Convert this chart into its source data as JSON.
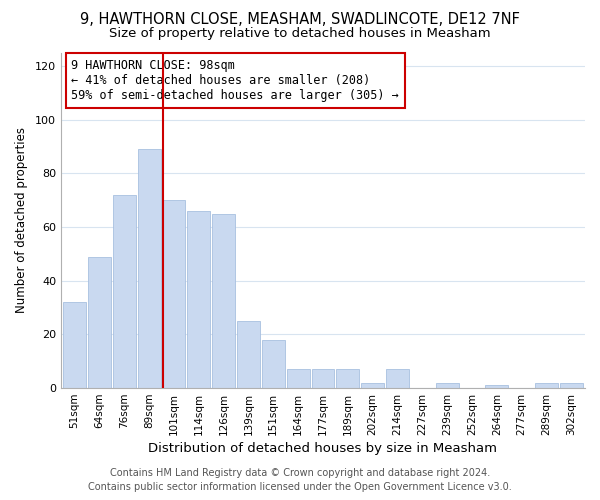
{
  "title": "9, HAWTHORN CLOSE, MEASHAM, SWADLINCOTE, DE12 7NF",
  "subtitle": "Size of property relative to detached houses in Measham",
  "xlabel": "Distribution of detached houses by size in Measham",
  "ylabel": "Number of detached properties",
  "bar_labels": [
    "51sqm",
    "64sqm",
    "76sqm",
    "89sqm",
    "101sqm",
    "114sqm",
    "126sqm",
    "139sqm",
    "151sqm",
    "164sqm",
    "177sqm",
    "189sqm",
    "202sqm",
    "214sqm",
    "227sqm",
    "239sqm",
    "252sqm",
    "264sqm",
    "277sqm",
    "289sqm",
    "302sqm"
  ],
  "bar_values": [
    32,
    49,
    72,
    89,
    70,
    66,
    65,
    25,
    18,
    7,
    7,
    7,
    2,
    7,
    0,
    2,
    0,
    1,
    0,
    2,
    2
  ],
  "bar_color": "#c9d9f0",
  "bar_edge_color": "#a8c0e0",
  "highlight_bar_index": 4,
  "highlight_line_color": "#cc0000",
  "annotation_line1": "9 HAWTHORN CLOSE: 98sqm",
  "annotation_line2": "← 41% of detached houses are smaller (208)",
  "annotation_line3": "59% of semi-detached houses are larger (305) →",
  "annotation_box_edge": "#cc0000",
  "annotation_fontsize": 8.5,
  "ylim": [
    0,
    125
  ],
  "yticks": [
    0,
    20,
    40,
    60,
    80,
    100,
    120
  ],
  "footer_line1": "Contains HM Land Registry data © Crown copyright and database right 2024.",
  "footer_line2": "Contains public sector information licensed under the Open Government Licence v3.0.",
  "title_fontsize": 10.5,
  "subtitle_fontsize": 9.5,
  "xlabel_fontsize": 9.5,
  "ylabel_fontsize": 8.5,
  "tick_fontsize": 8,
  "xtick_fontsize": 7.5,
  "footer_fontsize": 7,
  "background_color": "#ffffff",
  "grid_color": "#d8e4f0"
}
